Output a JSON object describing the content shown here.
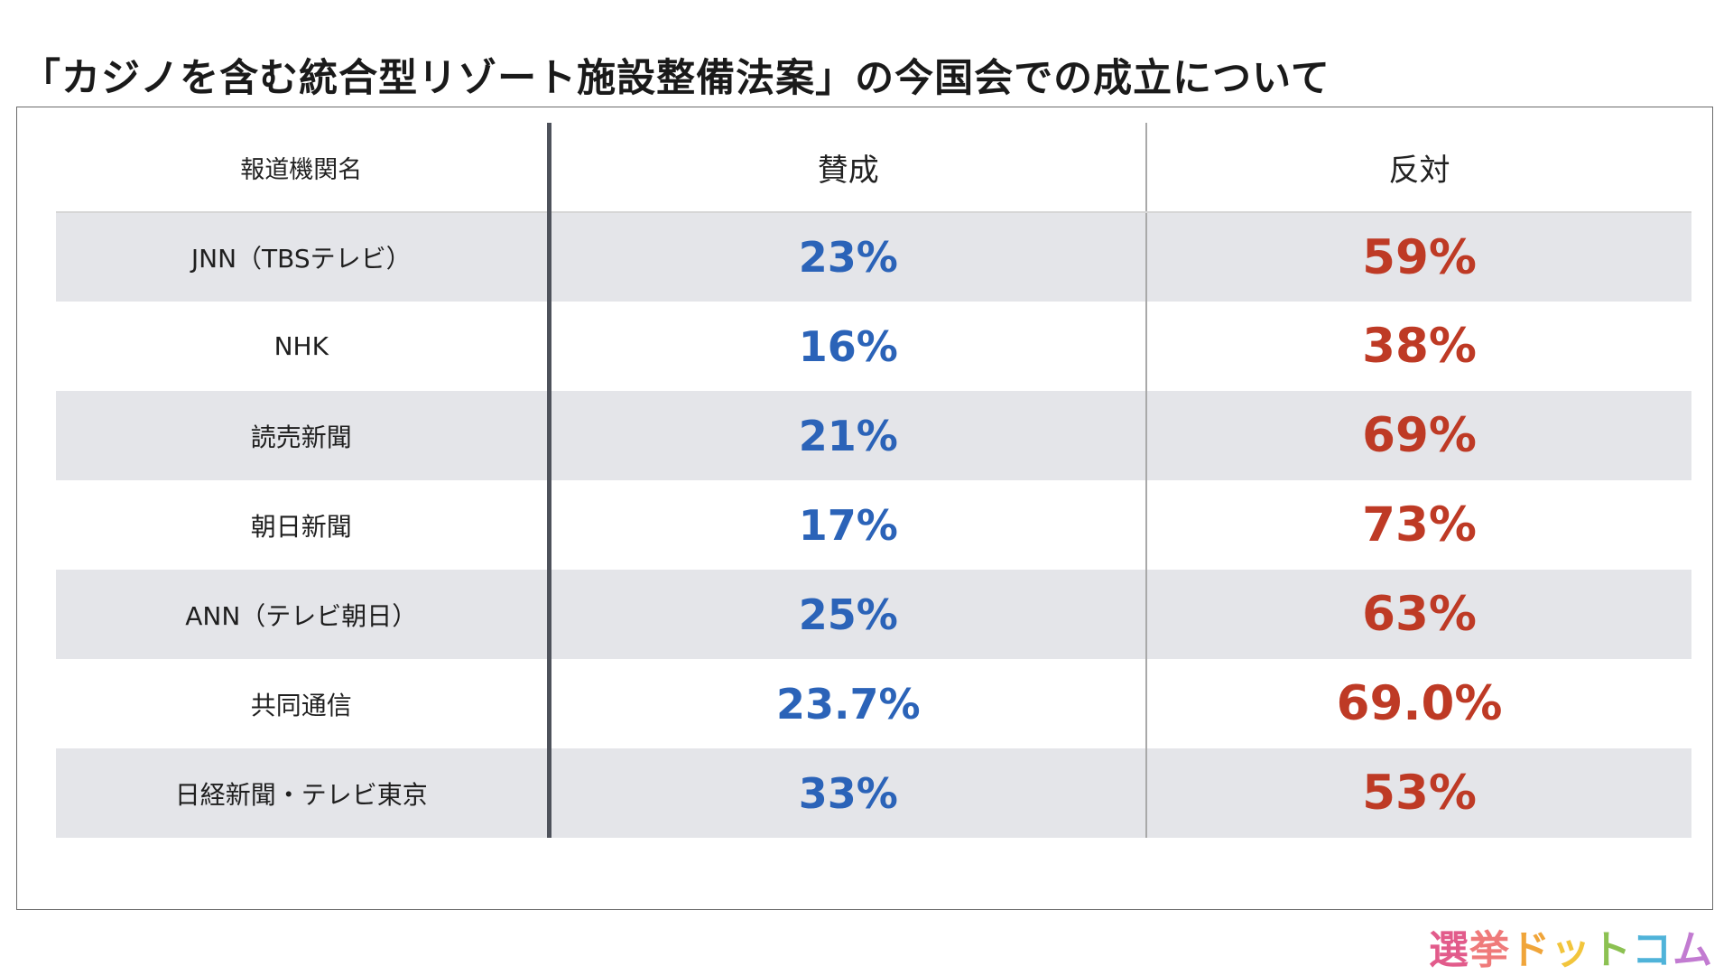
{
  "title": "「カジノを含む統合型リゾート施設整備法案」の今国会での成立について",
  "chart_data": {
    "type": "table",
    "columns": [
      "報道機関名",
      "賛成",
      "反対"
    ],
    "rows": [
      {
        "org": "JNN（TBSテレビ）",
        "yes": "23%",
        "no": "59%"
      },
      {
        "org": "NHK",
        "yes": "16%",
        "no": "38%"
      },
      {
        "org": "読売新聞",
        "yes": "21%",
        "no": "69%"
      },
      {
        "org": "朝日新聞",
        "yes": "17%",
        "no": "73%"
      },
      {
        "org": "ANN（テレビ朝日）",
        "yes": "25%",
        "no": "63%"
      },
      {
        "org": "共同通信",
        "yes": "23.7%",
        "no": "69.0%"
      },
      {
        "org": "日経新聞・テレビ東京",
        "yes": "33%",
        "no": "53%"
      }
    ],
    "colors": {
      "yes": "#2b63b8",
      "no": "#be3a25",
      "row_band": "#e4e5e9"
    }
  },
  "logo": {
    "chars": [
      {
        "text": "選",
        "color": "#e25b8b"
      },
      {
        "text": "挙",
        "color": "#ef7a7a"
      },
      {
        "text": "ド",
        "color": "#f0a53a"
      },
      {
        "text": "ッ",
        "color": "#f2c53c"
      },
      {
        "text": "ト",
        "color": "#8cc152"
      },
      {
        "text": "コ",
        "color": "#4fb3d9"
      },
      {
        "text": "ム",
        "color": "#c27bd1"
      }
    ]
  }
}
